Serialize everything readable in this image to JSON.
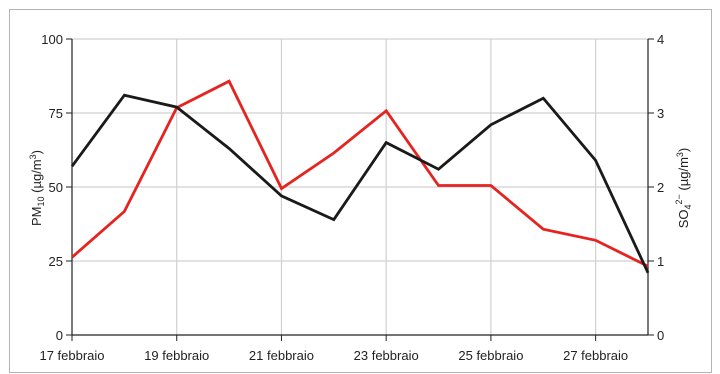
{
  "chart_data": {
    "type": "line",
    "x": [
      "17 febbraio",
      "18 febbraio",
      "19 febbraio",
      "20 febbraio",
      "21 febbraio",
      "22 febbraio",
      "23 febbraio",
      "24 febbraio",
      "25 febbraio",
      "26 febbraio",
      "27 febbraio",
      "28 febbraio"
    ],
    "x_tick_labels": [
      "17 febbraio",
      "19 febbraio",
      "21 febbraio",
      "23 febbraio",
      "25 febbraio",
      "27 febbraio"
    ],
    "series": [
      {
        "axis": "left",
        "color": "#1a1a1a",
        "values": [
          57,
          81,
          77,
          63,
          47,
          39,
          65,
          56,
          71,
          80,
          59,
          21
        ]
      },
      {
        "axis": "right",
        "color": "#e52420",
        "values": [
          1.05,
          1.67,
          3.07,
          3.43,
          1.98,
          2.46,
          3.03,
          2.02,
          2.02,
          1.43,
          1.28,
          0.93
        ]
      }
    ],
    "ylabel_left": {
      "base": "PM",
      "sub": "10",
      "unit": " (µg/m",
      "sup": "3",
      "close": ")"
    },
    "ylabel_right": {
      "base": "SO",
      "sub": "4",
      "charge": "2−",
      "unit": " (µg/m",
      "sup": "3",
      "close": ")"
    },
    "yticks_left": [
      0,
      25,
      50,
      75,
      100
    ],
    "yticks_right": [
      0,
      1,
      2,
      3,
      4
    ],
    "ylim_left": [
      0,
      100
    ],
    "ylim_right": [
      0,
      4
    ],
    "grid": true
  }
}
